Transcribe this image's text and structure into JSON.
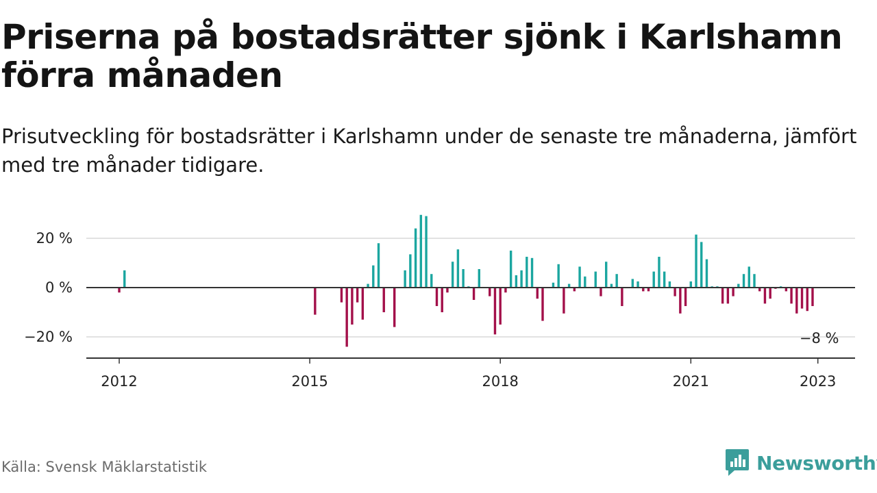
{
  "header": {
    "title": "Priserna på bostadsrätter sjönk i Karlshamn förra månaden",
    "subtitle": "Prisutveckling för bostadsrätter i Karlshamn under de senaste tre månaderna, jämfört med tre månader tidigare."
  },
  "footer": {
    "source": "Källa: Svensk Mäklarstatistik",
    "brand": "Newsworthy",
    "brand_icon": "newsworthy-logo-icon",
    "brand_color": "#3b9e9b"
  },
  "colors": {
    "positive": "#1ba6a0",
    "negative": "#a3104a",
    "zero_line": "#333333",
    "grid": "#d9d9d9"
  },
  "chart_data": {
    "type": "bar",
    "ylim": [
      -25,
      30
    ],
    "yticks": [
      {
        "value": 20,
        "label": "20 %"
      },
      {
        "value": 0,
        "label": "0 %"
      },
      {
        "value": -20,
        "label": "−20 %"
      }
    ],
    "xticks": [
      {
        "date": "2012-01",
        "label": "2012"
      },
      {
        "date": "2015-01",
        "label": "2015"
      },
      {
        "date": "2018-01",
        "label": "2018"
      },
      {
        "date": "2021-01",
        "label": "2021"
      },
      {
        "date": "2023-01",
        "label": "2023"
      }
    ],
    "annotation": {
      "date": "2023-01",
      "value": -8,
      "label": "−8 %"
    },
    "points": [
      {
        "date": "2012-01",
        "value": -2
      },
      {
        "date": "2012-02",
        "value": 7
      },
      {
        "date": "2015-02",
        "value": -11
      },
      {
        "date": "2015-07",
        "value": -6
      },
      {
        "date": "2015-08",
        "value": -24
      },
      {
        "date": "2015-09",
        "value": -15
      },
      {
        "date": "2015-10",
        "value": -6
      },
      {
        "date": "2015-11",
        "value": -13
      },
      {
        "date": "2015-12",
        "value": 1.5
      },
      {
        "date": "2016-01",
        "value": 9
      },
      {
        "date": "2016-02",
        "value": 18
      },
      {
        "date": "2016-03",
        "value": -10
      },
      {
        "date": "2016-05",
        "value": -16
      },
      {
        "date": "2016-07",
        "value": 7
      },
      {
        "date": "2016-08",
        "value": 13.5
      },
      {
        "date": "2016-09",
        "value": 24
      },
      {
        "date": "2016-10",
        "value": 29.5
      },
      {
        "date": "2016-11",
        "value": 29
      },
      {
        "date": "2016-12",
        "value": 5.5
      },
      {
        "date": "2017-01",
        "value": -7.5
      },
      {
        "date": "2017-02",
        "value": -10
      },
      {
        "date": "2017-03",
        "value": -2
      },
      {
        "date": "2017-04",
        "value": 10.5
      },
      {
        "date": "2017-05",
        "value": 15.5
      },
      {
        "date": "2017-06",
        "value": 7.5
      },
      {
        "date": "2017-07",
        "value": 0.5
      },
      {
        "date": "2017-08",
        "value": -5
      },
      {
        "date": "2017-09",
        "value": 7.5
      },
      {
        "date": "2017-11",
        "value": -3.5
      },
      {
        "date": "2017-12",
        "value": -19
      },
      {
        "date": "2018-01",
        "value": -15
      },
      {
        "date": "2018-02",
        "value": -2
      },
      {
        "date": "2018-03",
        "value": 15
      },
      {
        "date": "2018-04",
        "value": 5
      },
      {
        "date": "2018-05",
        "value": 7
      },
      {
        "date": "2018-06",
        "value": 12.5
      },
      {
        "date": "2018-07",
        "value": 12
      },
      {
        "date": "2018-08",
        "value": -4.5
      },
      {
        "date": "2018-09",
        "value": -13.5
      },
      {
        "date": "2018-11",
        "value": 2
      },
      {
        "date": "2018-12",
        "value": 9.5
      },
      {
        "date": "2019-01",
        "value": -10.5
      },
      {
        "date": "2019-02",
        "value": 1.5
      },
      {
        "date": "2019-03",
        "value": -1.5
      },
      {
        "date": "2019-04",
        "value": 8.5
      },
      {
        "date": "2019-05",
        "value": 4.5
      },
      {
        "date": "2019-07",
        "value": 6.5
      },
      {
        "date": "2019-08",
        "value": -3.5
      },
      {
        "date": "2019-09",
        "value": 10.5
      },
      {
        "date": "2019-10",
        "value": 1.5
      },
      {
        "date": "2019-11",
        "value": 5.5
      },
      {
        "date": "2019-12",
        "value": -7.5
      },
      {
        "date": "2020-02",
        "value": 3.5
      },
      {
        "date": "2020-03",
        "value": 2.5
      },
      {
        "date": "2020-04",
        "value": -1.5
      },
      {
        "date": "2020-05",
        "value": -1.5
      },
      {
        "date": "2020-06",
        "value": 6.5
      },
      {
        "date": "2020-07",
        "value": 12.5
      },
      {
        "date": "2020-08",
        "value": 6.5
      },
      {
        "date": "2020-09",
        "value": 2.5
      },
      {
        "date": "2020-10",
        "value": -3.5
      },
      {
        "date": "2020-11",
        "value": -10.5
      },
      {
        "date": "2020-12",
        "value": -7.5
      },
      {
        "date": "2021-01",
        "value": 2.5
      },
      {
        "date": "2021-02",
        "value": 21.5
      },
      {
        "date": "2021-03",
        "value": 18.5
      },
      {
        "date": "2021-04",
        "value": 11.5
      },
      {
        "date": "2021-05",
        "value": 0.5
      },
      {
        "date": "2021-06",
        "value": 0.5
      },
      {
        "date": "2021-07",
        "value": -6.5
      },
      {
        "date": "2021-08",
        "value": -6.5
      },
      {
        "date": "2021-09",
        "value": -3.5
      },
      {
        "date": "2021-10",
        "value": 1.5
      },
      {
        "date": "2021-11",
        "value": 5.5
      },
      {
        "date": "2021-12",
        "value": 8.5
      },
      {
        "date": "2022-01",
        "value": 5.5
      },
      {
        "date": "2022-02",
        "value": -1.5
      },
      {
        "date": "2022-03",
        "value": -6.5
      },
      {
        "date": "2022-04",
        "value": -4.5
      },
      {
        "date": "2022-05",
        "value": -0.5
      },
      {
        "date": "2022-06",
        "value": 0.5
      },
      {
        "date": "2022-07",
        "value": -1.5
      },
      {
        "date": "2022-08",
        "value": -6.5
      },
      {
        "date": "2022-09",
        "value": -10.5
      },
      {
        "date": "2022-10",
        "value": -8.5
      },
      {
        "date": "2022-11",
        "value": -9.5
      },
      {
        "date": "2022-12",
        "value": -7.5
      }
    ]
  }
}
